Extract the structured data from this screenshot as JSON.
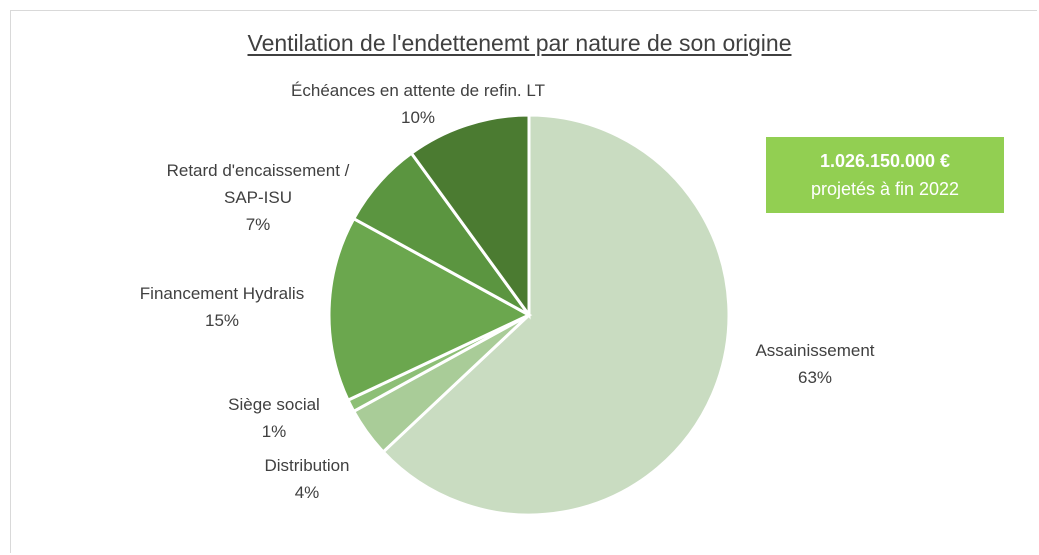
{
  "chart_data": {
    "type": "pie",
    "title": "Ventilation de l'endettenemt par nature de son origine",
    "categories": [
      "Assainissement",
      "Distribution",
      "Siège social",
      "Financement Hydralis",
      "Retard d'encaissement / SAP-ISU",
      "Échéances en attente de refin. LT"
    ],
    "values": [
      63,
      4,
      1,
      15,
      7,
      10
    ],
    "value_labels": [
      "63%",
      "4%",
      "1%",
      "15%",
      "7%",
      "10%"
    ],
    "colors": [
      "#c9dcc1",
      "#a9cc98",
      "#8dbf76",
      "#6ba74e",
      "#5b9540",
      "#4b7b31"
    ],
    "annotation": [
      "1.026.150.000 €",
      "projetés à fin 2022"
    ],
    "annotation_color": "#92cf52"
  }
}
